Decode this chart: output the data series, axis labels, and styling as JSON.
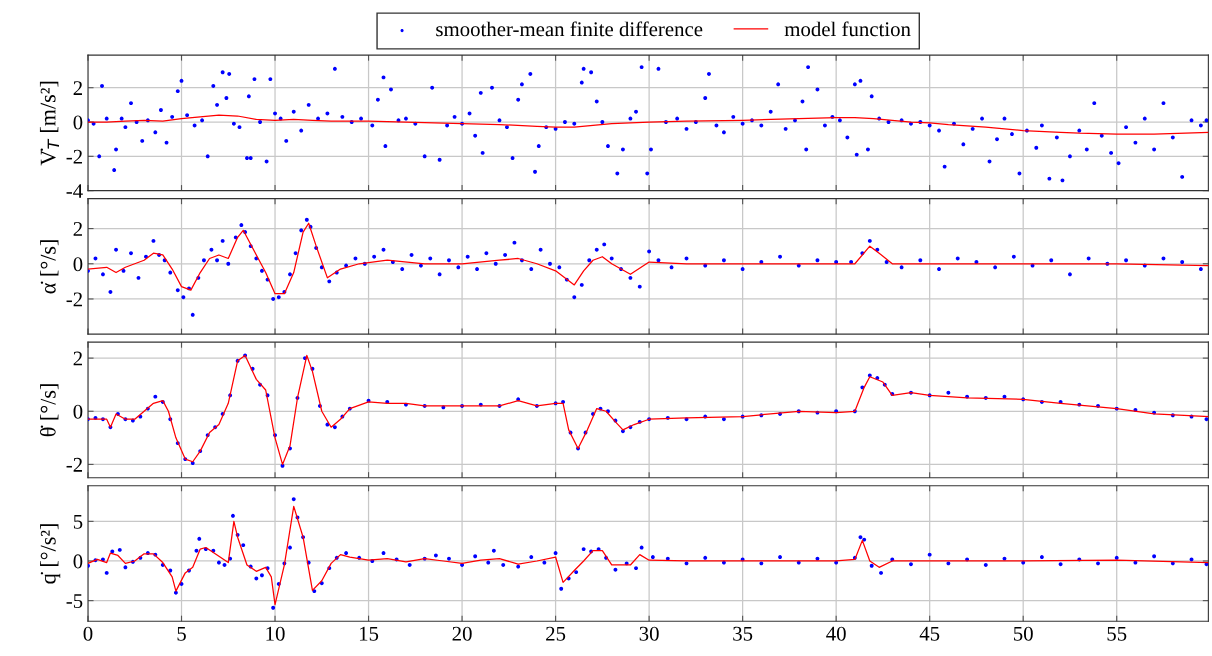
{
  "chart_data": [
    {
      "type": "scatter",
      "ylabel": "V̇$_{T}$ [m/s²]",
      "xlim": [
        0,
        59.9
      ],
      "ylim": [
        -4,
        3.9
      ],
      "xticks": [
        0,
        5,
        10,
        15,
        20,
        25,
        30,
        35,
        40,
        45,
        50,
        55
      ],
      "yticks": [
        -4,
        -2,
        0,
        2
      ],
      "tick_labels": "y",
      "grid": true,
      "legend": "top",
      "series": [
        {
          "name": "smoother-mean finite difference",
          "marker": "circle",
          "color": "#0000ff",
          "x": [
            0,
            0.3,
            0.6,
            0.75,
            1.0,
            1.4,
            1.5,
            1.8,
            2.0,
            2.3,
            2.6,
            2.9,
            3.2,
            3.6,
            3.9,
            4.2,
            4.5,
            4.8,
            5.0,
            5.3,
            5.7,
            6.1,
            6.4,
            6.7,
            6.9,
            7.2,
            7.4,
            7.55,
            7.8,
            8.1,
            8.5,
            8.6,
            8.7,
            8.9,
            9.2,
            9.55,
            9.75,
            10.0,
            10.3,
            10.6,
            11.0,
            11.4,
            11.8,
            12.3,
            12.8,
            13.2,
            13.6,
            14.1,
            14.6,
            15.2,
            15.5,
            15.8,
            15.9,
            16.2,
            16.6,
            17.0,
            17.5,
            18.0,
            18.4,
            18.8,
            19.2,
            19.6,
            20.0,
            20.4,
            20.7,
            21.0,
            21.1,
            21.6,
            22.0,
            22.4,
            22.7,
            23.0,
            23.2,
            23.65,
            23.9,
            24.1,
            24.5,
            25.0,
            25.5,
            26.0,
            26.4,
            26.5,
            26.9,
            27.2,
            27.5,
            27.8,
            28.3,
            28.6,
            29.0,
            29.3,
            29.6,
            29.9,
            30.1,
            30.5,
            30.9,
            31.5,
            32.0,
            32.5,
            33.0,
            33.2,
            33.6,
            34.0,
            34.5,
            35.0,
            35.5,
            36.0,
            36.5,
            36.9,
            37.3,
            37.8,
            38.2,
            38.4,
            38.5,
            39.0,
            39.4,
            39.8,
            40.2,
            40.6,
            41.0,
            41.1,
            41.3,
            41.7,
            41.9,
            42.3,
            42.8,
            43.5,
            44.0,
            44.5,
            45.0,
            45.5,
            45.8,
            46.3,
            46.8,
            47.3,
            47.8,
            48.2,
            48.6,
            49.0,
            49.4,
            49.8,
            50.2,
            50.7,
            51.0,
            51.4,
            51.8,
            52.1,
            52.5,
            53.0,
            53.4,
            53.8,
            54.2,
            54.7,
            55.1,
            55.5,
            56.0,
            56.5,
            57.0,
            57.5,
            58.0,
            58.5,
            59.0,
            59.5,
            59.8
          ],
          "values": [
            0.1,
            -0.1,
            -2.0,
            2.1,
            0.2,
            -2.8,
            -1.6,
            0.2,
            -0.3,
            1.1,
            0.0,
            -1.1,
            0.1,
            -0.6,
            0.7,
            -1.2,
            0.3,
            1.8,
            2.4,
            0.4,
            -0.2,
            0.1,
            -2.0,
            2.1,
            1.0,
            2.9,
            1.4,
            2.8,
            -0.1,
            -0.3,
            -2.1,
            1.5,
            -2.1,
            2.5,
            0.0,
            -2.3,
            2.5,
            0.5,
            0.2,
            -1.1,
            0.6,
            -0.5,
            1.0,
            0.2,
            0.5,
            3.1,
            0.3,
            0.0,
            0.2,
            -0.2,
            1.3,
            2.6,
            -1.4,
            1.9,
            0.1,
            0.2,
            -0.1,
            -2.0,
            2.0,
            -2.2,
            -0.2,
            0.3,
            -0.1,
            0.5,
            -0.8,
            1.7,
            -1.8,
            2.0,
            0.1,
            -0.3,
            -2.1,
            1.3,
            2.2,
            2.8,
            -2.9,
            -1.4,
            -0.3,
            -0.4,
            0.0,
            -0.1,
            2.3,
            3.1,
            2.9,
            1.2,
            0.0,
            -1.4,
            -3.0,
            -1.6,
            0.2,
            0.6,
            3.2,
            -3.0,
            -1.6,
            3.1,
            0.0,
            0.2,
            -0.4,
            0.0,
            1.4,
            2.8,
            -0.2,
            -0.6,
            0.3,
            -0.1,
            0.1,
            -0.2,
            0.6,
            2.2,
            -0.4,
            0.1,
            1.2,
            -1.6,
            3.2,
            1.9,
            -0.2,
            0.3,
            0.1,
            -0.9,
            2.2,
            -1.9,
            2.4,
            -1.6,
            1.5,
            0.2,
            0.0,
            0.1,
            -0.1,
            0.0,
            -0.2,
            -0.5,
            -2.6,
            -0.1,
            -1.3,
            -0.4,
            0.2,
            -2.3,
            -1.0,
            0.2,
            -0.7,
            -3.0,
            -0.5,
            -1.5,
            -0.2,
            -3.3,
            -0.9,
            -3.4,
            -2.0,
            -0.5,
            -1.6,
            1.1,
            -0.8,
            -1.8,
            -2.4,
            -0.3,
            -1.2,
            0.2,
            -1.6,
            1.1,
            -0.9,
            -3.2,
            0.1,
            -0.2,
            0.1
          ]
        },
        {
          "name": "model function",
          "type": "line",
          "color": "#ff0000",
          "x": [
            0,
            1,
            2,
            3,
            4,
            5,
            6,
            7,
            8,
            9,
            10,
            11,
            12,
            13,
            15,
            17,
            20,
            22,
            24,
            25,
            26,
            27,
            28,
            30,
            32,
            35,
            38,
            40,
            41,
            42,
            43,
            44,
            45,
            46,
            48,
            50,
            52,
            53,
            55,
            57,
            59.9
          ],
          "values": [
            0,
            0,
            0.05,
            0.1,
            0.05,
            0.2,
            0.3,
            0.4,
            0.35,
            0.15,
            0.1,
            0.15,
            0.1,
            0.05,
            0.05,
            0,
            -0.1,
            -0.15,
            -0.25,
            -0.3,
            -0.3,
            -0.2,
            -0.1,
            0,
            0.05,
            0.1,
            0.2,
            0.25,
            0.25,
            0.2,
            0.1,
            0,
            -0.05,
            -0.15,
            -0.3,
            -0.5,
            -0.6,
            -0.65,
            -0.7,
            -0.7,
            -0.6
          ]
        }
      ]
    },
    {
      "type": "scatter",
      "ylabel": "α̇ [°/s]",
      "xlim": [
        0,
        59.9
      ],
      "ylim": [
        -4,
        3.7
      ],
      "xticks": [
        0,
        5,
        10,
        15,
        20,
        25,
        30,
        35,
        40,
        45,
        50,
        55
      ],
      "yticks": [
        -2,
        0,
        2
      ],
      "tick_labels": "y",
      "grid": true,
      "series": [
        {
          "marker": "circle",
          "color": "#0000ff",
          "x": [
            0,
            0.4,
            0.8,
            1.2,
            1.5,
            1.9,
            2.3,
            2.7,
            3.1,
            3.5,
            3.8,
            4.1,
            4.4,
            4.8,
            5.1,
            5.4,
            5.6,
            5.9,
            6.2,
            6.6,
            6.9,
            7.2,
            7.5,
            7.9,
            8.2,
            8.4,
            8.7,
            9.0,
            9.3,
            9.6,
            9.9,
            10.2,
            10.5,
            10.8,
            11.1,
            11.4,
            11.7,
            11.9,
            12.2,
            12.5,
            12.9,
            13.3,
            13.8,
            14.3,
            14.8,
            15.3,
            15.8,
            16.3,
            16.8,
            17.3,
            17.8,
            18.3,
            18.8,
            19.3,
            19.8,
            20.3,
            20.8,
            21.3,
            21.8,
            22.3,
            22.8,
            23.2,
            23.7,
            24.2,
            24.7,
            25.2,
            25.6,
            26.0,
            26.4,
            26.8,
            27.2,
            27.6,
            28.0,
            28.5,
            29.0,
            29.5,
            30.0,
            30.5,
            31.2,
            32.0,
            33.0,
            34.0,
            35.0,
            36.0,
            37.0,
            38.0,
            39.0,
            40.0,
            40.8,
            41.4,
            41.8,
            42.2,
            42.7,
            43.5,
            44.5,
            45.5,
            46.5,
            47.5,
            48.5,
            49.5,
            50.5,
            51.5,
            52.5,
            53.5,
            54.5,
            55.5,
            56.5,
            57.5,
            58.5,
            59.5
          ],
          "values": [
            -0.4,
            0.3,
            -0.6,
            -1.6,
            0.8,
            -0.4,
            0.6,
            -0.8,
            0.4,
            1.3,
            0.5,
            0.2,
            -0.5,
            -1.5,
            -1.9,
            -1.4,
            -2.9,
            -0.8,
            0.2,
            0.8,
            0.2,
            1.3,
            0.0,
            1.5,
            2.2,
            1.8,
            1.0,
            0.3,
            -0.4,
            -0.9,
            -2.0,
            -1.9,
            -1.6,
            -0.6,
            0.6,
            1.9,
            2.5,
            2.1,
            0.9,
            -0.2,
            -1.0,
            -0.5,
            -0.1,
            0.3,
            0.0,
            0.4,
            0.8,
            0.1,
            -0.3,
            0.5,
            -0.1,
            0.3,
            -0.6,
            0.2,
            -0.2,
            0.4,
            -0.3,
            0.6,
            0.0,
            0.5,
            1.2,
            0.2,
            -0.3,
            0.8,
            0.0,
            -0.2,
            -0.9,
            -1.9,
            -1.2,
            0.2,
            0.8,
            1.1,
            0.3,
            -0.3,
            -0.8,
            -1.3,
            0.7,
            0.2,
            -0.2,
            0.3,
            -0.1,
            0.2,
            -0.3,
            0.1,
            0.4,
            -0.1,
            0.2,
            0.1,
            0.1,
            0.6,
            1.3,
            0.8,
            0.1,
            -0.2,
            0.2,
            -0.3,
            0.3,
            0.1,
            -0.2,
            0.4,
            -0.1,
            0.2,
            -0.6,
            0.3,
            0.0,
            0.2,
            -0.1,
            0.3,
            0.1,
            -0.3
          ]
        },
        {
          "type": "line",
          "color": "#ff0000",
          "x": [
            0,
            1,
            1.5,
            2,
            3,
            3.5,
            4,
            4.5,
            5,
            5.5,
            6,
            6.5,
            7,
            7.5,
            8,
            8.3,
            9,
            9.5,
            10,
            10.5,
            11,
            11.5,
            11.8,
            12.2,
            12.8,
            13.5,
            14.5,
            16,
            18,
            20,
            22,
            23,
            24,
            25,
            26,
            26.5,
            27,
            27.5,
            28,
            29,
            30,
            32,
            35,
            38,
            40,
            41,
            41.8,
            42.3,
            43,
            45,
            50,
            55,
            59.9
          ],
          "values": [
            -0.3,
            -0.2,
            -0.5,
            -0.2,
            0.2,
            0.6,
            0.5,
            -0.3,
            -1.3,
            -1.5,
            -0.5,
            0.3,
            0.5,
            0.3,
            1.5,
            1.9,
            0.5,
            -0.5,
            -1.7,
            -1.7,
            -0.5,
            1.8,
            2.3,
            1.0,
            -0.8,
            -0.3,
            0,
            0.2,
            0,
            0,
            0.2,
            0.3,
            0,
            -0.4,
            -1.2,
            -0.4,
            0.2,
            0.4,
            0,
            -0.6,
            0.1,
            0,
            0,
            0,
            0,
            0,
            1.0,
            0.6,
            0,
            0,
            0,
            0,
            -0.1
          ]
        }
      ]
    },
    {
      "type": "scatter",
      "ylabel": "θ̇ [°/s]",
      "xlim": [
        0,
        59.9
      ],
      "ylim": [
        -2.5,
        2.6
      ],
      "xticks": [
        0,
        5,
        10,
        15,
        20,
        25,
        30,
        35,
        40,
        45,
        50,
        55
      ],
      "yticks": [
        -2,
        0,
        2
      ],
      "tick_labels": "y",
      "grid": true,
      "series": [
        {
          "marker": "circle",
          "color": "#0000ff",
          "x": [
            0,
            0.4,
            0.8,
            1.2,
            1.6,
            2.0,
            2.4,
            2.8,
            3.2,
            3.6,
            4.0,
            4.4,
            4.8,
            5.2,
            5.6,
            6.0,
            6.4,
            6.8,
            7.2,
            7.6,
            8.0,
            8.4,
            8.8,
            9.2,
            9.6,
            10.0,
            10.4,
            10.8,
            11.2,
            11.6,
            12.0,
            12.4,
            12.8,
            13.2,
            13.6,
            14.0,
            15,
            16,
            17,
            18,
            19,
            20,
            21,
            22,
            23,
            24,
            25,
            25.4,
            25.8,
            26.2,
            26.6,
            27.0,
            27.4,
            27.8,
            28.2,
            28.6,
            29.0,
            29.5,
            30,
            31,
            32,
            33,
            34,
            35,
            36,
            37,
            38,
            39,
            40,
            41,
            41.4,
            41.8,
            42.2,
            42.6,
            43,
            44,
            45,
            46,
            47,
            48,
            49,
            50,
            51,
            52,
            53,
            54,
            55,
            56,
            57,
            58,
            59,
            59.8
          ],
          "values": [
            -0.3,
            -0.25,
            -0.3,
            -0.6,
            -0.1,
            -0.3,
            -0.35,
            -0.2,
            0.1,
            0.55,
            0.35,
            -0.3,
            -1.2,
            -1.8,
            -1.95,
            -1.5,
            -0.9,
            -0.6,
            -0.1,
            0.6,
            1.9,
            2.1,
            1.6,
            1.0,
            0.6,
            -0.9,
            -2.05,
            -1.4,
            0.5,
            2.0,
            1.6,
            0.2,
            -0.5,
            -0.6,
            -0.2,
            0.1,
            0.4,
            0.35,
            0.25,
            0.2,
            0.15,
            0.2,
            0.25,
            0.2,
            0.45,
            0.2,
            0.3,
            0.35,
            -0.8,
            -1.4,
            -0.8,
            -0.1,
            0.1,
            0.0,
            -0.35,
            -0.75,
            -0.6,
            -0.4,
            -0.3,
            -0.25,
            -0.3,
            -0.2,
            -0.3,
            -0.2,
            -0.15,
            -0.1,
            0.0,
            -0.05,
            0.0,
            0.0,
            0.9,
            1.35,
            1.25,
            1.0,
            0.65,
            0.7,
            0.6,
            0.7,
            0.55,
            0.5,
            0.55,
            0.45,
            0.35,
            0.35,
            0.25,
            0.2,
            0.1,
            0.05,
            -0.05,
            -0.15,
            -0.2,
            -0.3
          ]
        },
        {
          "type": "line",
          "color": "#ff0000",
          "x": [
            0,
            1,
            1.2,
            1.5,
            2,
            2.5,
            3,
            3.5,
            4,
            4.3,
            4.7,
            5.2,
            5.6,
            6,
            6.5,
            7,
            7.5,
            8,
            8.4,
            9,
            9.5,
            10,
            10.4,
            10.8,
            11.2,
            11.7,
            12,
            12.5,
            13,
            13.5,
            14,
            15,
            16,
            17,
            18,
            20,
            22,
            23,
            24,
            25,
            25.4,
            25.7,
            26.2,
            26.7,
            27.2,
            27.7,
            28.2,
            28.6,
            29.2,
            30,
            32,
            35,
            38,
            40,
            41,
            41.5,
            41.8,
            42.5,
            43,
            44,
            45,
            47,
            50,
            52,
            55,
            57,
            59.9
          ],
          "values": [
            -0.3,
            -0.3,
            -0.6,
            -0.1,
            -0.3,
            -0.3,
            0,
            0.3,
            0.4,
            0,
            -1.0,
            -1.8,
            -1.9,
            -1.5,
            -0.8,
            -0.5,
            0.3,
            1.9,
            2.1,
            1.2,
            0.8,
            -1.0,
            -2.0,
            -1.3,
            0.5,
            2.1,
            1.5,
            0,
            -0.6,
            -0.3,
            0.1,
            0.35,
            0.3,
            0.3,
            0.2,
            0.2,
            0.2,
            0.4,
            0.2,
            0.3,
            0.3,
            -0.7,
            -1.4,
            -0.7,
            0.1,
            0,
            -0.4,
            -0.7,
            -0.5,
            -0.3,
            -0.25,
            -0.2,
            0,
            -0.05,
            0,
            0.9,
            1.3,
            1.1,
            0.6,
            0.7,
            0.6,
            0.5,
            0.45,
            0.3,
            0.1,
            -0.1,
            -0.2
          ]
        }
      ]
    },
    {
      "type": "scatter",
      "ylabel": "q̇ [°/s²]",
      "xlim": [
        0,
        59.9
      ],
      "ylim": [
        -7.6,
        9.5
      ],
      "xticks": [
        0,
        5,
        10,
        15,
        20,
        25,
        30,
        35,
        40,
        45,
        50,
        55
      ],
      "yticks": [
        -5,
        0,
        5
      ],
      "grid": true,
      "series": [
        {
          "marker": "circle",
          "color": "#0000ff",
          "x": [
            0,
            0.4,
            0.8,
            1.0,
            1.3,
            1.7,
            2.0,
            2.4,
            2.8,
            3.2,
            3.6,
            4.0,
            4.4,
            4.7,
            5.0,
            5.4,
            5.8,
            5.95,
            6.3,
            6.7,
            7.0,
            7.3,
            7.6,
            7.75,
            8.0,
            8.3,
            8.7,
            9.0,
            9.3,
            9.6,
            9.9,
            10.2,
            10.5,
            10.8,
            11.0,
            11.2,
            11.5,
            11.8,
            12.1,
            12.5,
            12.9,
            13.3,
            13.8,
            14.5,
            15.2,
            15.8,
            16.5,
            17.2,
            18,
            18.6,
            19.3,
            20,
            20.7,
            21.4,
            21.7,
            22.2,
            23,
            23.7,
            24.4,
            25,
            25.3,
            25.7,
            26.1,
            26.5,
            26.9,
            27.3,
            27.7,
            28.2,
            28.8,
            29.3,
            29.6,
            30.2,
            31,
            32,
            33,
            34,
            35,
            36,
            37,
            38,
            39,
            40,
            41,
            41.3,
            41.5,
            41.9,
            42.4,
            43,
            44,
            45,
            46,
            47,
            48,
            49,
            50,
            51,
            52,
            53,
            54,
            55,
            56,
            57,
            58,
            59,
            59.8
          ],
          "values": [
            -0.6,
            0.1,
            0.2,
            -1.5,
            1.2,
            1.4,
            -0.8,
            -0.1,
            0.4,
            1.0,
            0.8,
            -0.5,
            -1.2,
            -4.0,
            -2.9,
            -1.2,
            1.3,
            2.8,
            1.5,
            1.3,
            -0.2,
            -0.5,
            0.3,
            5.7,
            3.3,
            2.0,
            -0.7,
            -2.2,
            -1.8,
            -0.9,
            -5.9,
            -2.9,
            -0.3,
            1.7,
            7.8,
            5.5,
            3.0,
            -0.2,
            -3.8,
            -2.8,
            -0.9,
            0.4,
            1.0,
            0.4,
            0.0,
            1.0,
            0.2,
            -0.5,
            0.3,
            0.7,
            0.3,
            -0.5,
            0.6,
            -0.2,
            1.3,
            -0.5,
            -0.7,
            0.5,
            -0.2,
            1.0,
            -3.5,
            -2.2,
            -1.4,
            1.5,
            1.2,
            1.5,
            0.4,
            -1.1,
            -0.3,
            -0.9,
            1.7,
            0.5,
            0.3,
            -0.3,
            0.4,
            -0.2,
            0.2,
            -0.3,
            0.5,
            -0.2,
            0.3,
            -0.2,
            0.4,
            3.0,
            2.7,
            -0.6,
            -1.5,
            0.2,
            -0.4,
            0.8,
            -0.3,
            0.2,
            -0.5,
            0.3,
            -0.2,
            0.5,
            -0.4,
            0.2,
            -0.3,
            0.4,
            -0.2,
            0.6,
            -0.3,
            0.2,
            -0.4
          ]
        },
        {
          "type": "line",
          "color": "#ff0000",
          "x": [
            0,
            0.5,
            1,
            1.2,
            1.6,
            2,
            2.5,
            3,
            3.5,
            4,
            4.5,
            4.7,
            5.2,
            5.6,
            6,
            6.3,
            7,
            7.5,
            7.8,
            8,
            8.5,
            9,
            9.5,
            9.8,
            10,
            10.5,
            11,
            11.5,
            12,
            12.5,
            13,
            13.5,
            14,
            15,
            16,
            17,
            18,
            19,
            20,
            21,
            22,
            23,
            24,
            25,
            25.4,
            26,
            26.5,
            27,
            27.5,
            28,
            29,
            29.5,
            30,
            32,
            35,
            38,
            40,
            41,
            41.4,
            41.8,
            42.3,
            43,
            45,
            50,
            55,
            59.9
          ],
          "values": [
            -0.3,
            0.2,
            -0.2,
            1.0,
            0.7,
            -0.3,
            0,
            0.9,
            0.9,
            -0.2,
            -2.0,
            -3.8,
            -1.5,
            -0.8,
            1.5,
            1.7,
            0.6,
            -0.2,
            5.0,
            3.0,
            -0.5,
            -1.3,
            -0.8,
            -2.0,
            -5.5,
            -0.5,
            6.9,
            3.0,
            -3.7,
            -2.5,
            -0.3,
            0.8,
            0.5,
            0.1,
            0.3,
            -0.1,
            0.3,
            0,
            -0.3,
            0.1,
            0.3,
            -0.4,
            0,
            0.5,
            -2.7,
            -1.2,
            0,
            1.3,
            1.3,
            -0.5,
            -0.5,
            0.8,
            0.1,
            0,
            0,
            0,
            0,
            0.2,
            2.6,
            0,
            -0.8,
            0,
            0,
            0,
            0.1,
            -0.2
          ]
        }
      ]
    }
  ]
}
